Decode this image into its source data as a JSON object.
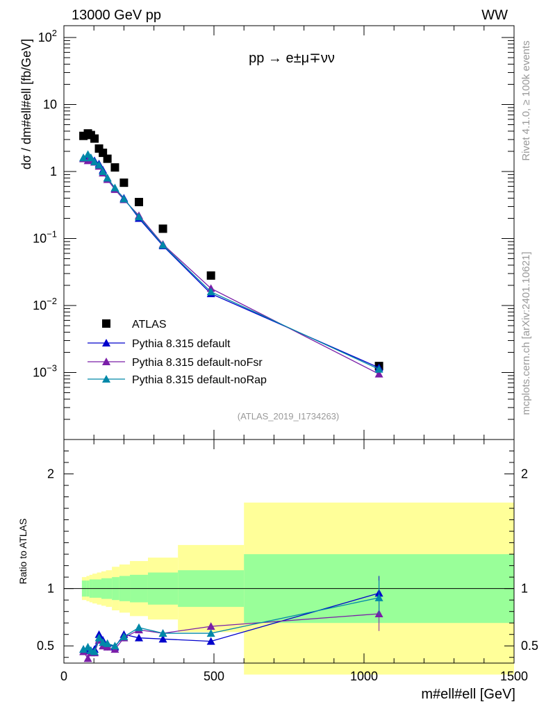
{
  "header": {
    "energy_label": "13000 GeV pp",
    "process_tag": "WW",
    "side_label_top": "Rivet 4.1.0, ≥ 100k events",
    "side_label_bottom": "mcplots.cern.ch [arXiv:2401.10621]",
    "analysis_label": "(ATLAS_2019_I1734263)"
  },
  "colors": {
    "default": "#0000cc",
    "noFsr": "#7a1ea8",
    "noRap": "#0088a8",
    "band_inner": "#99ff99",
    "band_outer": "#ffff99",
    "data": "#000000"
  },
  "chart_data": [
    {
      "type": "scatter",
      "panel": "main",
      "title": "pp → e±μ∓νν",
      "xlabel": "m#ell#ell [GeV]",
      "ylabel": "dσ / dm#ell#ell [fb/GeV]",
      "yscale": "log",
      "xlim": [
        0,
        1500
      ],
      "ylim": [
        0.0001,
        150
      ],
      "ytick_labels": [
        "10^-3",
        "10^-2",
        "10^-1",
        "1",
        "10",
        "10^2"
      ],
      "x": [
        65,
        80,
        90,
        102,
        117,
        130,
        145,
        170,
        200,
        250,
        330,
        490,
        1050
      ],
      "series": [
        {
          "name": "ATLAS",
          "marker": "square",
          "values": [
            3.4,
            3.7,
            3.5,
            3.1,
            2.2,
            1.9,
            1.55,
            1.15,
            0.68,
            0.35,
            0.14,
            0.028,
            0.00125
          ]
        },
        {
          "name": "Pythia 8.315 default",
          "marker": "triangle",
          "values": [
            1.6,
            1.7,
            1.6,
            1.45,
            1.3,
            1.05,
            0.8,
            0.56,
            0.4,
            0.2,
            0.078,
            0.015,
            0.00118
          ]
        },
        {
          "name": "Pythia 8.315 default-noFsr",
          "marker": "triangle",
          "values": [
            1.55,
            1.45,
            1.55,
            1.38,
            1.2,
            0.95,
            0.76,
            0.54,
            0.38,
            0.22,
            0.082,
            0.018,
            0.00095
          ]
        },
        {
          "name": "Pythia 8.315 default-noRap",
          "marker": "triangle",
          "values": [
            1.6,
            1.8,
            1.6,
            1.4,
            1.25,
            1.0,
            0.8,
            0.57,
            0.39,
            0.21,
            0.08,
            0.016,
            0.00112
          ]
        }
      ],
      "legend": {
        "position": "lower-left",
        "entries": [
          "ATLAS",
          "Pythia 8.315 default",
          "Pythia 8.315 default-noFsr",
          "Pythia 8.315 default-noRap"
        ]
      }
    },
    {
      "type": "line",
      "panel": "ratio",
      "xlabel": "m#ell#ell [GeV]",
      "ylabel": "Ratio to ATLAS",
      "xlim": [
        0,
        1500
      ],
      "ylim": [
        0.35,
        2.3
      ],
      "xtick_labels": [
        "0",
        "500",
        "1000",
        "1500"
      ],
      "ytick_labels": [
        "0.5",
        "1",
        "2"
      ],
      "reference_line": 1,
      "x": [
        65,
        80,
        90,
        102,
        117,
        130,
        145,
        170,
        200,
        250,
        330,
        490,
        1050
      ],
      "series": [
        {
          "name": "Pythia 8.315 default",
          "values": [
            0.47,
            0.46,
            0.46,
            0.47,
            0.6,
            0.55,
            0.52,
            0.49,
            0.6,
            0.57,
            0.56,
            0.54,
            0.96
          ]
        },
        {
          "name": "Pythia 8.315 default-noFsr",
          "values": [
            0.45,
            0.39,
            0.44,
            0.44,
            0.55,
            0.5,
            0.49,
            0.47,
            0.57,
            0.64,
            0.61,
            0.67,
            0.78
          ]
        },
        {
          "name": "Pythia 8.315 default-noRap",
          "values": [
            0.47,
            0.49,
            0.46,
            0.45,
            0.57,
            0.53,
            0.52,
            0.5,
            0.58,
            0.66,
            0.61,
            0.61,
            0.92
          ]
        }
      ],
      "bands": {
        "bin_edges": [
          60,
          75,
          85,
          95,
          110,
          125,
          140,
          160,
          185,
          220,
          280,
          380,
          600,
          1500
        ],
        "inner_half_width": [
          0.07,
          0.07,
          0.08,
          0.08,
          0.08,
          0.09,
          0.09,
          0.1,
          0.11,
          0.12,
          0.14,
          0.16,
          0.3
        ],
        "outer_half_width": [
          0.1,
          0.11,
          0.12,
          0.13,
          0.14,
          0.15,
          0.16,
          0.19,
          0.21,
          0.24,
          0.27,
          0.38,
          0.75
        ]
      }
    }
  ]
}
